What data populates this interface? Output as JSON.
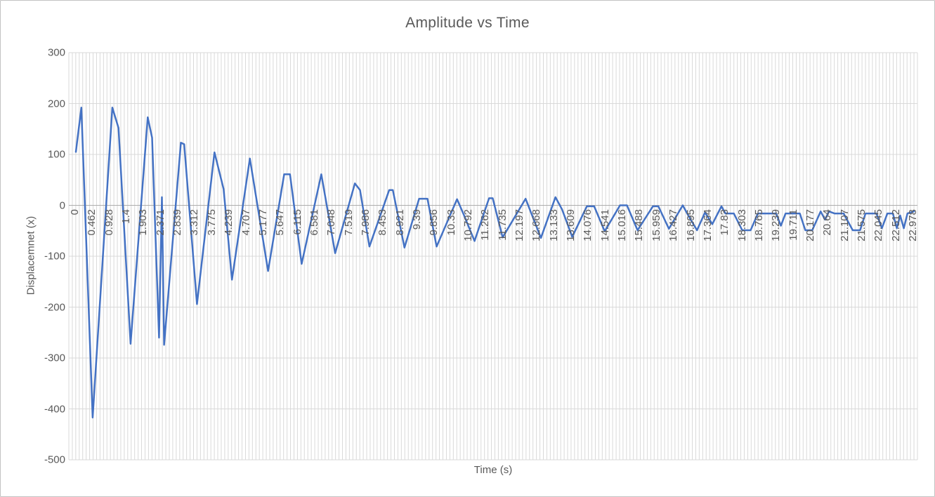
{
  "title": "Amplitude vs Time",
  "colors": {
    "series_line": "#4472C4",
    "gridline": "#D9D9D9",
    "zero_axis_line": "#ACACAC",
    "text": "#595959",
    "background": "#FFFFFF",
    "frame_border": "#C3C3C3"
  },
  "chart_data": {
    "type": "line",
    "title": "Amplitude vs Time",
    "xlabel": "Time (s)",
    "ylabel": "Displacemnet (x)",
    "ylim": [
      -500,
      300
    ],
    "ytick_interval": 100,
    "yticks": [
      "300",
      "200",
      "100",
      "0",
      "-100",
      "-200",
      "-300",
      "-400",
      "-500"
    ],
    "x_tick_labels": [
      "0",
      "0.462",
      "0.928",
      "1.4",
      "1.903",
      "2.371",
      "2.839",
      "3.312",
      "3.775",
      "4.239",
      "4.707",
      "5.177",
      "5.647",
      "6.115",
      "6.581",
      "7.048",
      "7.519",
      "7.986",
      "8.453",
      "8.921",
      "9.39",
      "9.856",
      "10.33",
      "10.792",
      "11.262",
      "11.735",
      "12.197",
      "12.668",
      "13.133",
      "13.609",
      "14.076",
      "14.541",
      "15.016",
      "15.488",
      "15.959",
      "16.427",
      "16.895",
      "17.364",
      "17.83",
      "18.303",
      "18.765",
      "19.239",
      "19.711",
      "20.177",
      "20.64",
      "21.107",
      "21.575",
      "22.045",
      "22.512",
      "22.978"
    ],
    "x_max": 22.978,
    "n_categories": 246,
    "grid": {
      "horizontal": true,
      "vertical_per_category": true
    },
    "legend": "none",
    "series": [
      {
        "name": "Displacement",
        "color": "#4472C4",
        "points": [
          [
            0.0,
            105
          ],
          [
            0.15,
            192
          ],
          [
            0.46,
            -417
          ],
          [
            1.0,
            192
          ],
          [
            1.17,
            152
          ],
          [
            1.5,
            -272
          ],
          [
            1.97,
            173
          ],
          [
            2.09,
            133
          ],
          [
            2.28,
            -260
          ],
          [
            2.36,
            16
          ],
          [
            2.42,
            -274
          ],
          [
            2.88,
            123
          ],
          [
            2.97,
            120
          ],
          [
            3.32,
            -194
          ],
          [
            3.8,
            104
          ],
          [
            4.05,
            32
          ],
          [
            4.28,
            -146
          ],
          [
            4.77,
            92
          ],
          [
            5.27,
            -129
          ],
          [
            5.71,
            61
          ],
          [
            5.87,
            61
          ],
          [
            6.19,
            -115
          ],
          [
            6.73,
            61
          ],
          [
            7.11,
            -94
          ],
          [
            7.65,
            43
          ],
          [
            7.79,
            30
          ],
          [
            8.05,
            -81
          ],
          [
            8.59,
            30
          ],
          [
            8.69,
            30
          ],
          [
            9.01,
            -83
          ],
          [
            9.41,
            13
          ],
          [
            9.64,
            13
          ],
          [
            9.89,
            -81
          ],
          [
            10.45,
            12
          ],
          [
            10.64,
            -19
          ],
          [
            10.93,
            -70
          ],
          [
            11.33,
            14
          ],
          [
            11.43,
            14
          ],
          [
            11.7,
            -63
          ],
          [
            12.33,
            13
          ],
          [
            12.75,
            -64
          ],
          [
            13.15,
            16
          ],
          [
            13.33,
            -8
          ],
          [
            13.61,
            -62
          ],
          [
            14.01,
            -2
          ],
          [
            14.21,
            -2
          ],
          [
            14.5,
            -51
          ],
          [
            14.92,
            0
          ],
          [
            15.11,
            0
          ],
          [
            15.4,
            -49
          ],
          [
            15.82,
            -2
          ],
          [
            15.97,
            -2
          ],
          [
            16.26,
            -46
          ],
          [
            16.64,
            0
          ],
          [
            16.8,
            -21
          ],
          [
            17.03,
            -49
          ],
          [
            17.25,
            -14
          ],
          [
            17.45,
            -37
          ],
          [
            17.7,
            -2
          ],
          [
            17.81,
            -16
          ],
          [
            18.04,
            -16
          ],
          [
            18.27,
            -49
          ],
          [
            18.5,
            -49
          ],
          [
            18.7,
            -16
          ],
          [
            19.2,
            -16
          ],
          [
            19.33,
            -40
          ],
          [
            19.46,
            -16
          ],
          [
            19.85,
            -16
          ],
          [
            20.0,
            -49
          ],
          [
            20.19,
            -49
          ],
          [
            20.42,
            -12
          ],
          [
            20.54,
            -28
          ],
          [
            20.65,
            -12
          ],
          [
            20.8,
            -16
          ],
          [
            21.05,
            -16
          ],
          [
            21.3,
            -49
          ],
          [
            21.5,
            -49
          ],
          [
            21.65,
            -16
          ],
          [
            21.95,
            -16
          ],
          [
            22.1,
            -45
          ],
          [
            22.25,
            -16
          ],
          [
            22.4,
            -16
          ],
          [
            22.51,
            -45
          ],
          [
            22.6,
            -20
          ],
          [
            22.7,
            -45
          ],
          [
            22.8,
            -16
          ],
          [
            22.98,
            -12
          ]
        ]
      }
    ]
  }
}
